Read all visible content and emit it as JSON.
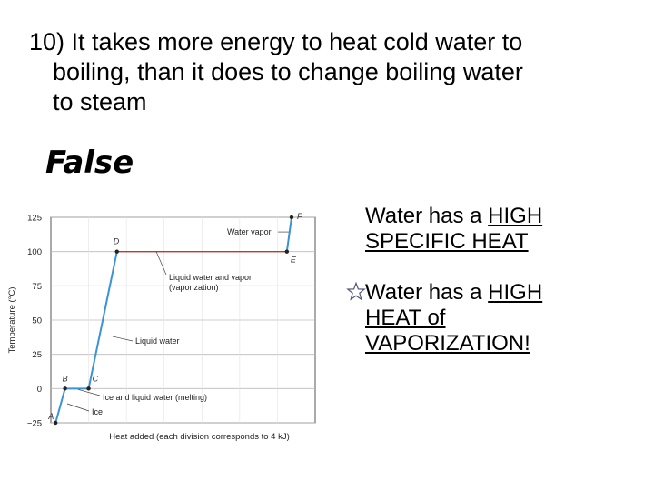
{
  "question": {
    "line1": "10) It takes more energy to heat cold water to",
    "line2": "boiling, than it does to change boiling water",
    "line3": "to steam"
  },
  "answer": "False",
  "facts": [
    {
      "pre": "Water has a ",
      "u1": "HIGH",
      "u2": "SPECIFIC HEAT",
      "bullet": "none"
    },
    {
      "pre": "Water has a ",
      "u1": "HIGH",
      "u2": "HEAT of",
      "u3": "VAPORIZATION!",
      "bullet": "star-icon"
    }
  ],
  "chart_data": {
    "type": "line",
    "xlabel": "Heat added (each division corresponds to 4 kJ)",
    "ylabel": "Temperature (°C)",
    "yticks": [
      125,
      100,
      75,
      50,
      25,
      0,
      -25
    ],
    "ytick_labels": [
      "125",
      "100",
      "75",
      "50",
      "25",
      "0",
      "−25"
    ],
    "ylim": [
      -25,
      125
    ],
    "xlim": [
      0,
      28
    ],
    "grid": true,
    "series": [
      {
        "points": [
          {
            "label": "A",
            "x": 0.5,
            "y": -25
          },
          {
            "label": "B",
            "x": 1.5,
            "y": 0
          },
          {
            "label": "C",
            "x": 4.0,
            "y": 0
          },
          {
            "label": "D",
            "x": 7.0,
            "y": 100
          },
          {
            "label": "E",
            "x": 25.0,
            "y": 100
          },
          {
            "label": "F",
            "x": 25.5,
            "y": 125
          }
        ]
      }
    ],
    "annotations": [
      {
        "text": "Water vapor",
        "x": 25.3,
        "y": 113
      },
      {
        "text": "Liquid water and vapor",
        "text2": "(vaporization)",
        "x": 11.5,
        "y": 100
      },
      {
        "text": "Liquid water",
        "x": 6.0,
        "y": 50
      },
      {
        "text": "Ice and liquid water (melting)",
        "x": 3.0,
        "y": 0
      },
      {
        "text": "Ice",
        "x": 1.2,
        "y": -15
      }
    ],
    "colors": {
      "heating_line": "#3a93d6",
      "plateau_line": "#c0392b",
      "grid": "#bbbbbb"
    }
  }
}
